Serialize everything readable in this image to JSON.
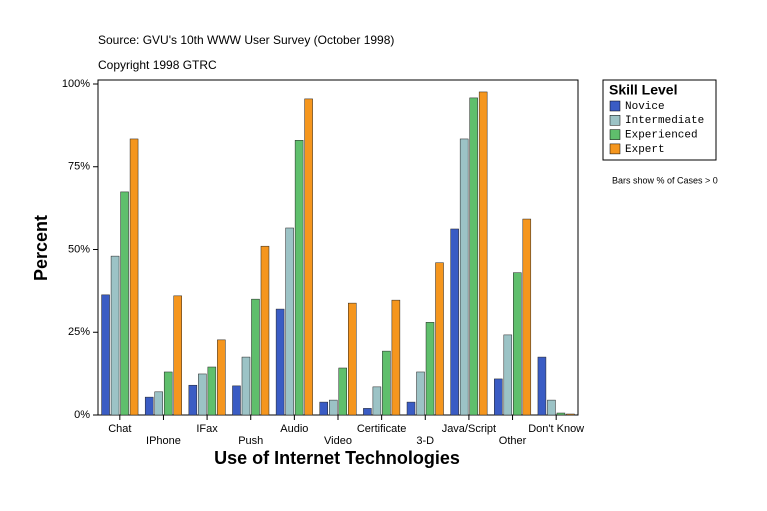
{
  "chart_data": {
    "type": "bar",
    "source": "Source: GVU's 10th WWW User Survey (October 1998)",
    "copyright": "Copyright 1998 GTRC",
    "x_label": "Use of Internet Technologies",
    "y_label": "Percent",
    "legend_title": "Skill Level",
    "note": "Bars show % of Cases > 0",
    "categories": [
      "Chat",
      "IPhone",
      "IFax",
      "Push",
      "Audio",
      "Video",
      "Certificate",
      "3-D",
      "Java/Script",
      "Other",
      "Don't Know"
    ],
    "series": [
      {
        "name": "Novice",
        "color": "#3a5cc4",
        "values": [
          36.3,
          5.4,
          9,
          8.8,
          32,
          3.9,
          2,
          3.9,
          56.2,
          10.9,
          17.5
        ]
      },
      {
        "name": "Intermediate",
        "color": "#9cc3c6",
        "values": [
          48,
          7,
          12.4,
          17.5,
          56.5,
          4.5,
          8.5,
          13,
          83.4,
          24.2,
          4.5
        ]
      },
      {
        "name": "Experienced",
        "color": "#5fbf6c",
        "values": [
          67.4,
          13,
          14.5,
          35,
          83,
          14.2,
          19.3,
          28,
          95.8,
          43,
          0.6
        ]
      },
      {
        "name": "Expert",
        "color": "#f5961e",
        "values": [
          83.4,
          36,
          22.7,
          51,
          95.5,
          33.8,
          34.7,
          46,
          97.6,
          59.2,
          0.3
        ]
      }
    ],
    "ylim": [
      0,
      100
    ],
    "yticks": [
      {
        "value": 0,
        "label": "0%"
      },
      {
        "value": 25,
        "label": "25%"
      },
      {
        "value": 50,
        "label": "50%"
      },
      {
        "value": 75,
        "label": "75%"
      },
      {
        "value": 100,
        "label": "100%"
      }
    ],
    "legend": "right"
  }
}
